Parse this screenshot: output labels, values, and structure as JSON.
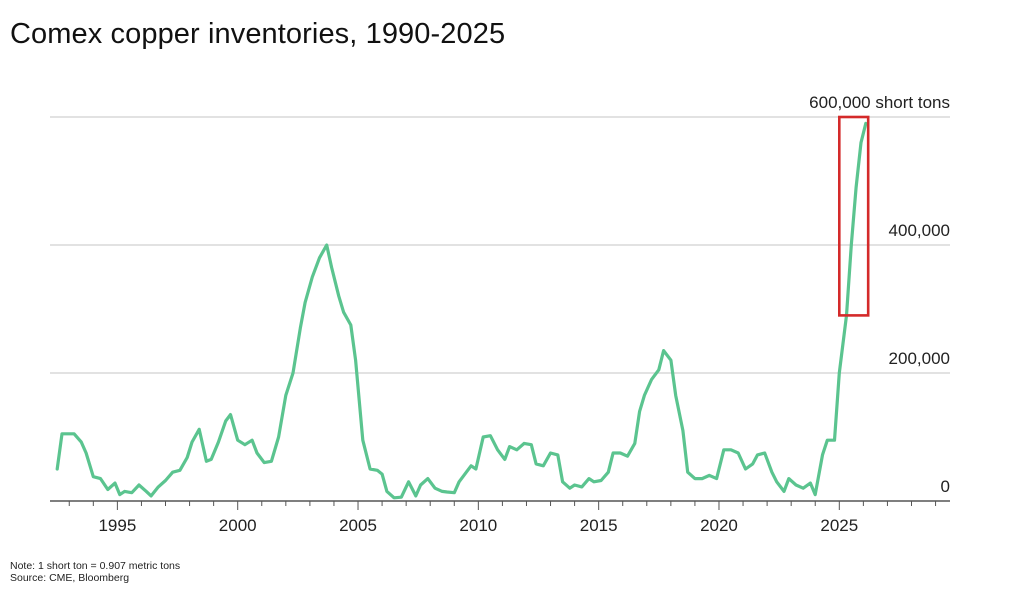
{
  "title": "Comex copper inventories, 1990-2025",
  "notes": {
    "note": "Note: 1 short ton = 0.907 metric tons",
    "source": "Source: CME, Bloomberg"
  },
  "colors": {
    "line": "#5bc48f",
    "highlight": "#d42a2a",
    "grid": "#d0d0d0",
    "axis": "#555555"
  },
  "chart_data": {
    "type": "line",
    "title": "Comex copper inventories, 1990-2025",
    "xlabel": "",
    "ylabel": "",
    "xlim": [
      1992.2,
      2029.6
    ],
    "ylim": [
      0,
      600000
    ],
    "grid": true,
    "y_ticks": [
      0,
      200000,
      400000,
      600000
    ],
    "y_tick_labels": [
      "0",
      "200,000",
      "400,000",
      "600,000 short tons"
    ],
    "x_ticks": [
      1995,
      2000,
      2005,
      2010,
      2015,
      2020,
      2025
    ],
    "x_tick_labels": [
      "1995",
      "2000",
      "2005",
      "2010",
      "2015",
      "2020",
      "2025"
    ],
    "annotations": [
      {
        "type": "box",
        "description": "highlighted recent surge",
        "x_range": [
          2025.0,
          2026.2
        ],
        "y_range": [
          290000,
          600000
        ],
        "color": "#d42a2a"
      }
    ],
    "series": [
      {
        "x": [
          1992.5,
          1992.7,
          1993.2,
          1993.5,
          1993.7,
          1994.0,
          1994.3,
          1994.6,
          1994.9,
          1995.1,
          1995.3,
          1995.6,
          1995.9,
          1996.2,
          1996.4,
          1996.7,
          1997.0,
          1997.3,
          1997.6,
          1997.9,
          1998.1,
          1998.4,
          1998.7,
          1998.9,
          1999.2,
          1999.5,
          1999.7,
          2000.0,
          2000.3,
          2000.6,
          2000.8,
          2001.1,
          2001.4,
          2001.7,
          2002.0,
          2002.3,
          2002.6,
          2002.8,
          2003.1,
          2003.4,
          2003.7,
          2003.9,
          2004.2,
          2004.4,
          2004.7,
          2004.9,
          2005.2,
          2005.5,
          2005.8,
          2006.0,
          2006.2,
          2006.5,
          2006.8,
          2007.1,
          2007.4,
          2007.6,
          2007.9,
          2008.2,
          2008.5,
          2008.7,
          2009.0,
          2009.2,
          2009.5,
          2009.7,
          2009.9,
          2010.2,
          2010.5,
          2010.8,
          2011.1,
          2011.3,
          2011.6,
          2011.9,
          2012.2,
          2012.4,
          2012.7,
          2013.0,
          2013.3,
          2013.5,
          2013.8,
          2014.0,
          2014.3,
          2014.6,
          2014.8,
          2015.1,
          2015.4,
          2015.6,
          2015.9,
          2016.2,
          2016.5,
          2016.7,
          2016.9,
          2017.2,
          2017.5,
          2017.7,
          2018.0,
          2018.2,
          2018.5,
          2018.7,
          2019.0,
          2019.3,
          2019.6,
          2019.9,
          2020.2,
          2020.5,
          2020.8,
          2021.1,
          2021.4,
          2021.6,
          2021.9,
          2022.2,
          2022.4,
          2022.7,
          2022.9,
          2023.2,
          2023.5,
          2023.8,
          2024.0,
          2024.3,
          2024.5,
          2024.8,
          2025.0,
          2025.3,
          2025.5,
          2025.7,
          2025.9,
          2026.1
        ],
        "y": [
          50000,
          105000,
          105000,
          92000,
          75000,
          38000,
          35000,
          18000,
          28000,
          10000,
          15000,
          13000,
          25000,
          15000,
          8000,
          22000,
          32000,
          45000,
          48000,
          68000,
          92000,
          112000,
          62000,
          65000,
          92000,
          125000,
          135000,
          95000,
          88000,
          95000,
          75000,
          60000,
          62000,
          100000,
          165000,
          200000,
          270000,
          310000,
          350000,
          380000,
          400000,
          365000,
          320000,
          295000,
          275000,
          220000,
          95000,
          50000,
          48000,
          42000,
          15000,
          5000,
          6000,
          30000,
          8000,
          25000,
          35000,
          20000,
          15000,
          14000,
          13000,
          30000,
          45000,
          55000,
          50000,
          100000,
          102000,
          80000,
          65000,
          85000,
          80000,
          90000,
          88000,
          58000,
          55000,
          75000,
          72000,
          30000,
          20000,
          25000,
          22000,
          35000,
          30000,
          32000,
          45000,
          75000,
          75000,
          70000,
          90000,
          140000,
          165000,
          190000,
          205000,
          235000,
          220000,
          165000,
          110000,
          45000,
          35000,
          35000,
          40000,
          35000,
          80000,
          80000,
          75000,
          50000,
          58000,
          72000,
          75000,
          45000,
          30000,
          15000,
          35000,
          25000,
          20000,
          28000,
          10000,
          72000,
          95000,
          95000,
          200000,
          290000,
          400000,
          490000,
          560000,
          590000
        ]
      }
    ]
  }
}
